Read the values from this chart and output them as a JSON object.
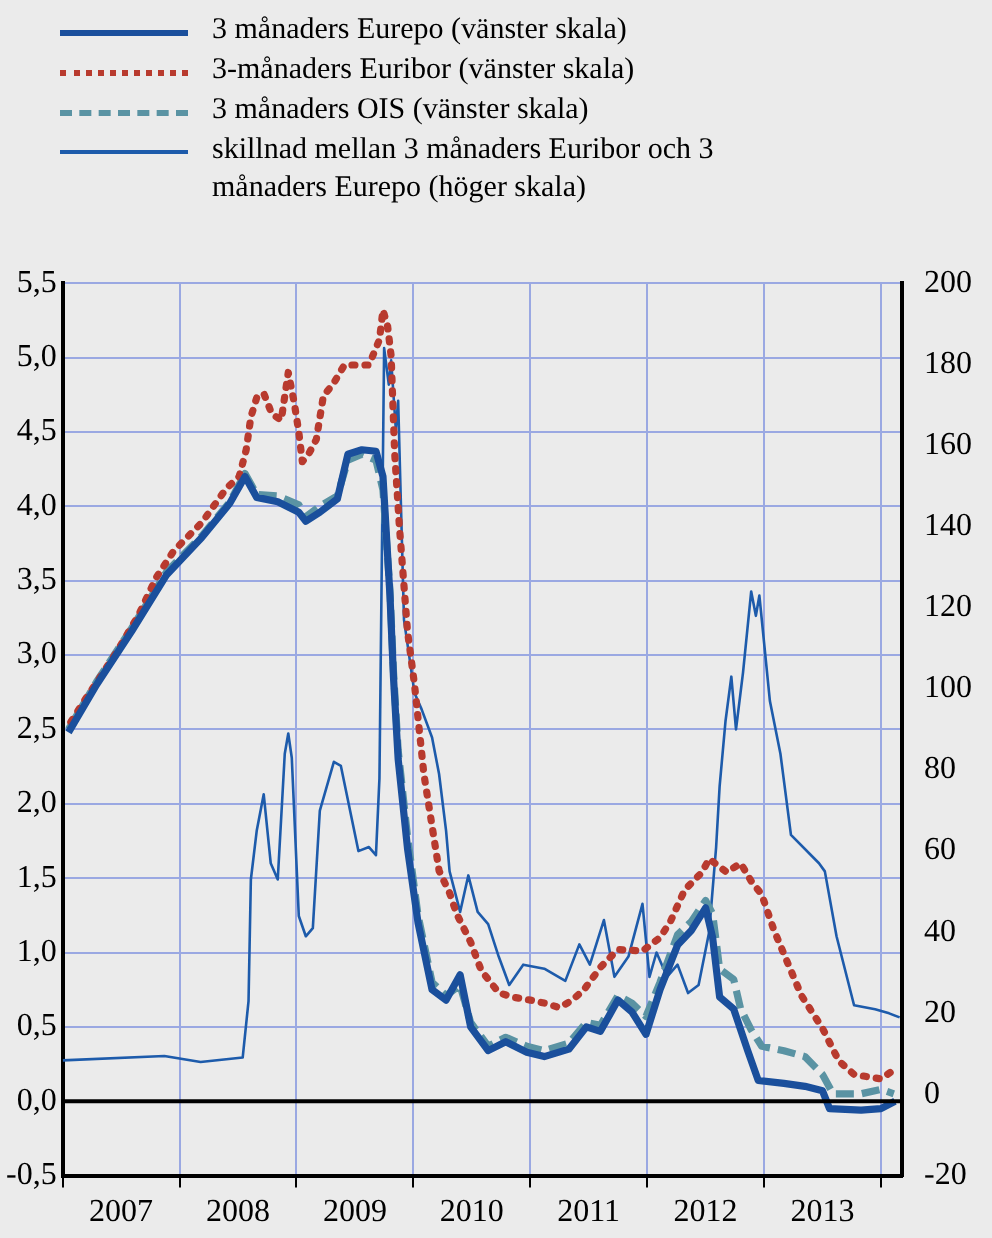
{
  "chart_data": {
    "type": "line",
    "legend": "top",
    "grid": true,
    "marker": "none",
    "xlim": [
      2007,
      2014.18
    ],
    "xticks": [
      {
        "value": 2007,
        "label": null
      },
      {
        "value": 2007.5,
        "label": "2007"
      },
      {
        "value": 2008,
        "label": null
      },
      {
        "value": 2008.5,
        "label": "2008"
      },
      {
        "value": 2009,
        "label": null
      },
      {
        "value": 2009.5,
        "label": "2009"
      },
      {
        "value": 2010,
        "label": null
      },
      {
        "value": 2010.5,
        "label": "2010"
      },
      {
        "value": 2011,
        "label": null
      },
      {
        "value": 2011.5,
        "label": "2011"
      },
      {
        "value": 2012,
        "label": null
      },
      {
        "value": 2012.5,
        "label": "2012"
      },
      {
        "value": 2013,
        "label": null
      },
      {
        "value": 2013.5,
        "label": "2013"
      },
      {
        "value": 2014,
        "label": null
      }
    ],
    "ylim": [
      -0.5,
      5.5
    ],
    "yticks": [
      {
        "value": -0.5,
        "label": "-0,5"
      },
      {
        "value": 0,
        "label": "0,0"
      },
      {
        "value": 0.5,
        "label": "0,5"
      },
      {
        "value": 1,
        "label": "1,0"
      },
      {
        "value": 1.5,
        "label": "1,5"
      },
      {
        "value": 2,
        "label": "2,0"
      },
      {
        "value": 2.5,
        "label": "2,5"
      },
      {
        "value": 3,
        "label": "3,0"
      },
      {
        "value": 3.5,
        "label": "3,5"
      },
      {
        "value": 4,
        "label": "4,0"
      },
      {
        "value": 4.5,
        "label": "4,5"
      },
      {
        "value": 5,
        "label": "5,0"
      },
      {
        "value": 5.5,
        "label": "5,5"
      }
    ],
    "y2lim": [
      -20,
      200
    ],
    "y2ticks": [
      -20,
      0,
      20,
      40,
      60,
      80,
      100,
      120,
      140,
      160,
      180,
      200
    ],
    "ref_lines": [
      {
        "axis": "y",
        "value": 0,
        "color": "#000000"
      }
    ],
    "series": [
      {
        "name": "3 månaders Eurepo (vänster skala)",
        "color": "#1a4f9c",
        "line_style": "solid",
        "x": [
          2007.05,
          2007.29,
          2007.59,
          2007.89,
          2008.19,
          2008.43,
          2008.56,
          2008.66,
          2008.84,
          2009.02,
          2009.08,
          2009.2,
          2009.35,
          2009.44,
          2009.56,
          2009.68,
          2009.74,
          2009.8,
          2009.83,
          2009.87,
          2009.95,
          2010.04,
          2010.16,
          2010.28,
          2010.4,
          2010.49,
          2010.64,
          2010.79,
          2010.97,
          2011.12,
          2011.33,
          2011.48,
          2011.6,
          2011.75,
          2011.87,
          2011.99,
          2012.11,
          2012.26,
          2012.38,
          2012.5,
          2012.56,
          2012.62,
          2012.74,
          2012.86,
          2012.95,
          2013.17,
          2013.35,
          2013.5,
          2013.56,
          2013.83,
          2014.0,
          2014.12
        ],
        "values": [
          2.48,
          2.8,
          3.16,
          3.54,
          3.79,
          4.02,
          4.2,
          4.06,
          4.03,
          3.96,
          3.9,
          3.96,
          4.05,
          4.35,
          4.38,
          4.37,
          4.2,
          3.4,
          2.85,
          2.3,
          1.7,
          1.2,
          0.75,
          0.68,
          0.85,
          0.5,
          0.34,
          0.4,
          0.33,
          0.3,
          0.35,
          0.5,
          0.47,
          0.68,
          0.6,
          0.45,
          0.75,
          1.05,
          1.15,
          1.3,
          1.1,
          0.7,
          0.62,
          0.34,
          0.14,
          0.12,
          0.1,
          0.07,
          -0.05,
          -0.06,
          -0.05,
          0.0
        ]
      },
      {
        "name": "3-månaders Euribor (vänster skala)",
        "color": "#b83a2e",
        "line_style": "dotted",
        "x": [
          2007.07,
          2007.2,
          2007.32,
          2007.47,
          2007.65,
          2007.8,
          2007.95,
          2008.19,
          2008.4,
          2008.51,
          2008.57,
          2008.61,
          2008.66,
          2008.72,
          2008.79,
          2008.87,
          2008.93,
          2008.98,
          2009.02,
          2009.05,
          2009.11,
          2009.17,
          2009.23,
          2009.32,
          2009.41,
          2009.5,
          2009.62,
          2009.71,
          2009.74,
          2009.78,
          2009.81,
          2009.84,
          2009.88,
          2009.95,
          2010.01,
          2010.09,
          2010.22,
          2010.31,
          2010.37,
          2010.49,
          2010.58,
          2010.73,
          2010.85,
          2011.0,
          2011.12,
          2011.25,
          2011.36,
          2011.46,
          2011.6,
          2011.75,
          2011.96,
          2012.11,
          2012.2,
          2012.32,
          2012.47,
          2012.53,
          2012.68,
          2012.8,
          2012.89,
          2012.98,
          2013.08,
          2013.17,
          2013.32,
          2013.5,
          2013.64,
          2013.77,
          2013.92,
          2014.0,
          2014.11
        ],
        "values": [
          2.55,
          2.71,
          2.85,
          3.03,
          3.27,
          3.52,
          3.7,
          3.89,
          4.12,
          4.2,
          4.38,
          4.6,
          4.73,
          4.76,
          4.62,
          4.58,
          4.9,
          4.7,
          4.5,
          4.3,
          4.36,
          4.45,
          4.74,
          4.83,
          4.95,
          4.95,
          4.95,
          5.12,
          5.32,
          5.21,
          5.01,
          4.36,
          3.87,
          3.16,
          2.8,
          2.2,
          1.55,
          1.4,
          1.26,
          1.07,
          0.88,
          0.73,
          0.7,
          0.68,
          0.66,
          0.63,
          0.68,
          0.75,
          0.9,
          1.02,
          1.01,
          1.1,
          1.21,
          1.42,
          1.54,
          1.63,
          1.54,
          1.6,
          1.48,
          1.39,
          1.16,
          0.99,
          0.71,
          0.49,
          0.27,
          0.18,
          0.16,
          0.15,
          0.21
        ]
      },
      {
        "name": "3 månaders OIS (vänster skala)",
        "color": "#5a93a3",
        "line_style": "dashed",
        "x": [
          2007.05,
          2007.29,
          2007.59,
          2007.89,
          2008.19,
          2008.43,
          2008.56,
          2008.66,
          2008.84,
          2009.02,
          2009.08,
          2009.2,
          2009.35,
          2009.44,
          2009.56,
          2009.68,
          2009.74,
          2009.8,
          2009.83,
          2009.87,
          2009.95,
          2010.04,
          2010.16,
          2010.28,
          2010.4,
          2010.49,
          2010.64,
          2010.79,
          2010.97,
          2011.12,
          2011.33,
          2011.48,
          2011.6,
          2011.75,
          2011.87,
          2011.99,
          2012.11,
          2012.26,
          2012.38,
          2012.5,
          2012.56,
          2012.62,
          2012.74,
          2012.8,
          2012.89,
          2012.98,
          2013.17,
          2013.35,
          2013.5,
          2013.59,
          2013.83,
          2014.0,
          2014.11
        ],
        "values": [
          2.5,
          2.82,
          3.18,
          3.56,
          3.8,
          4.03,
          4.22,
          4.08,
          4.07,
          4.01,
          3.93,
          4.0,
          4.07,
          4.31,
          4.35,
          4.31,
          4.11,
          3.43,
          2.89,
          2.36,
          1.78,
          1.25,
          0.8,
          0.71,
          0.78,
          0.53,
          0.37,
          0.43,
          0.37,
          0.34,
          0.39,
          0.53,
          0.51,
          0.71,
          0.66,
          0.57,
          0.8,
          1.12,
          1.21,
          1.35,
          1.26,
          0.89,
          0.82,
          0.62,
          0.48,
          0.37,
          0.34,
          0.3,
          0.18,
          0.05,
          0.05,
          0.08,
          0.05
        ]
      },
      {
        "name": "skillnad mellan 3 månaders Euribor och 3 månaders Eurepo (höger skala)",
        "color": "#1d5bab",
        "line_style": "solid",
        "axis": "y2",
        "x": [
          2007.0,
          2007.87,
          2008.18,
          2008.54,
          2008.59,
          2008.61,
          2008.66,
          2008.72,
          2008.78,
          2008.84,
          2008.9,
          2008.93,
          2008.96,
          2009.02,
          2009.08,
          2009.14,
          2009.2,
          2009.32,
          2009.38,
          2009.53,
          2009.62,
          2009.68,
          2009.71,
          2009.75,
          2009.79,
          2009.81,
          2009.85,
          2009.87,
          2009.92,
          2009.97,
          2010.01,
          2010.07,
          2010.16,
          2010.22,
          2010.28,
          2010.31,
          2010.4,
          2010.47,
          2010.55,
          2010.64,
          2010.73,
          2010.82,
          2010.94,
          2011.12,
          2011.3,
          2011.42,
          2011.51,
          2011.63,
          2011.72,
          2011.84,
          2011.96,
          2012.02,
          2012.08,
          2012.17,
          2012.26,
          2012.35,
          2012.44,
          2012.53,
          2012.59,
          2012.62,
          2012.67,
          2012.72,
          2012.76,
          2012.82,
          2012.89,
          2012.93,
          2012.96,
          2013.05,
          2013.14,
          2013.23,
          2013.47,
          2013.52,
          2013.62,
          2013.77,
          2013.95,
          2014.07,
          2014.16
        ],
        "values": [
          8.4,
          9.5,
          8.0,
          9.1,
          23,
          53,
          65,
          74,
          57,
          53,
          84,
          89,
          83,
          44,
          39,
          41,
          70,
          82,
          81,
          60,
          61,
          59,
          78,
          184,
          175,
          181,
          164,
          171,
          117,
          107,
          99,
          95,
          88,
          79,
          65,
          55,
          45,
          54,
          45,
          42,
          34,
          27,
          32,
          31,
          28,
          37,
          32,
          43,
          29,
          34,
          47,
          29,
          35,
          29,
          32,
          25,
          27,
          40,
          61,
          76,
          92,
          103,
          90,
          104,
          124,
          118,
          123,
          97,
          84,
          64,
          57,
          55,
          39,
          22,
          21,
          20,
          19
        ]
      }
    ]
  }
}
